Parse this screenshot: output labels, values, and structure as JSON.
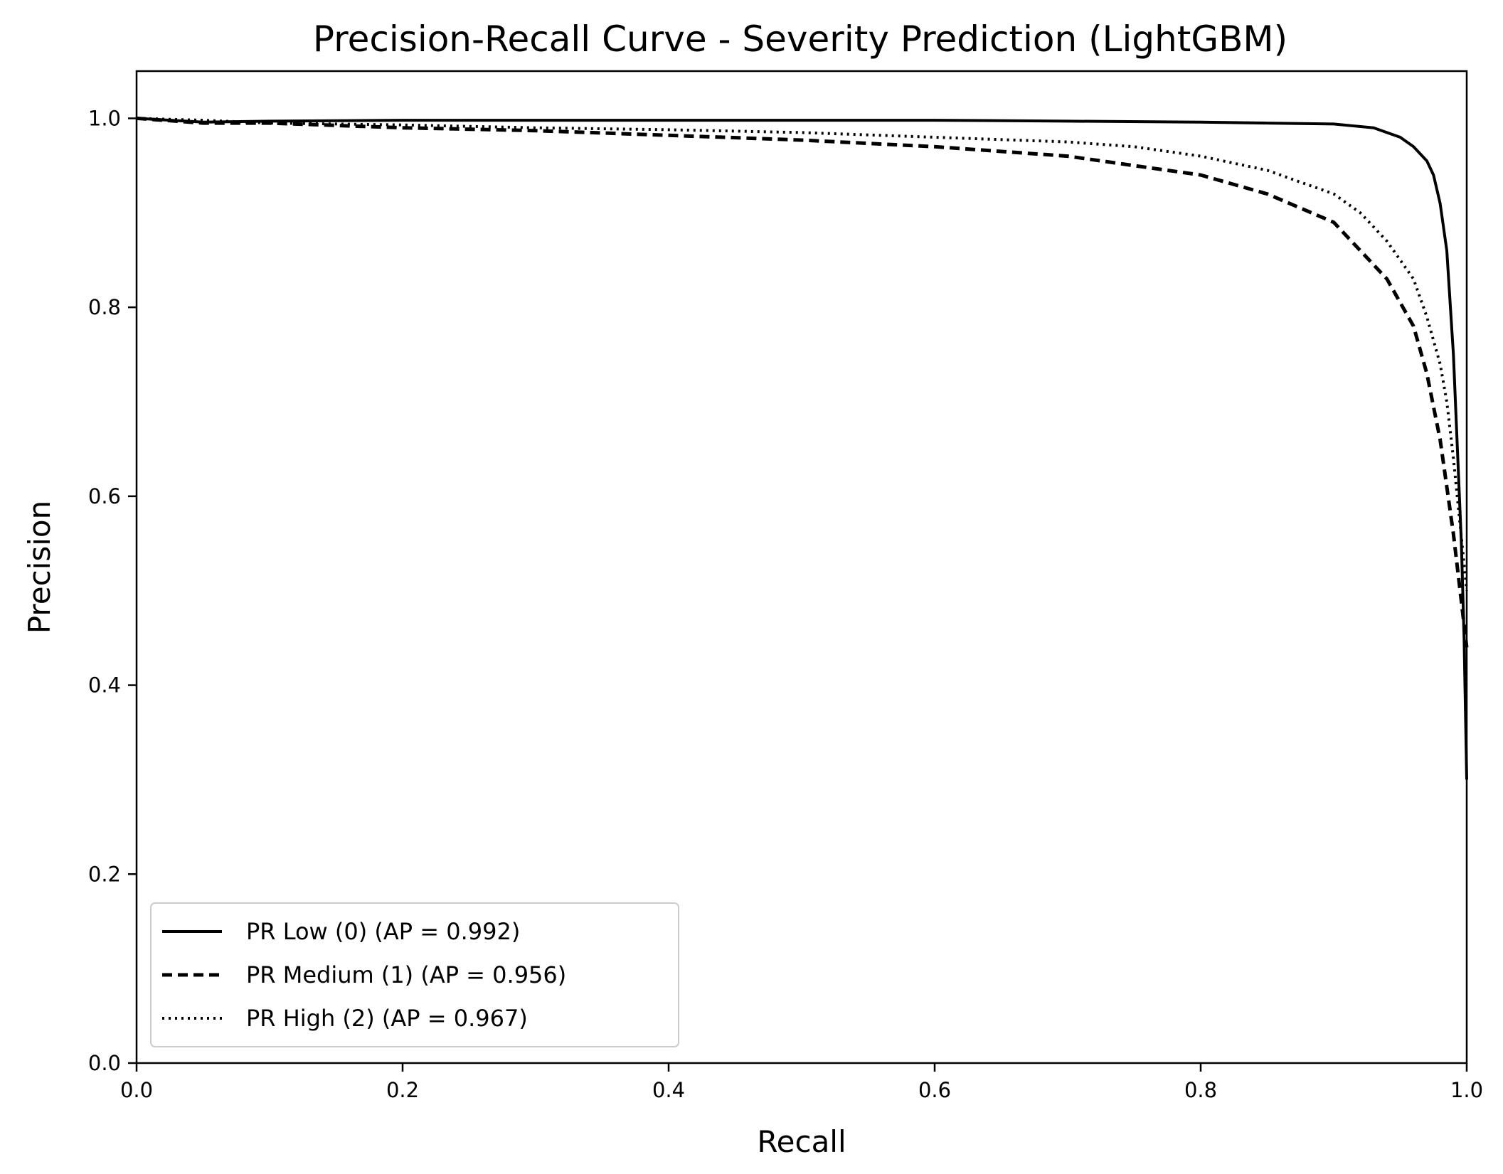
{
  "chart_data": {
    "type": "line",
    "title": "Precision-Recall Curve - Severity Prediction (LightGBM)",
    "xlabel": "Recall",
    "ylabel": "Precision",
    "xlim": [
      0.0,
      1.0
    ],
    "ylim": [
      0.0,
      1.05
    ],
    "xticks": [
      "0.0",
      "0.2",
      "0.4",
      "0.6",
      "0.8",
      "1.0"
    ],
    "yticks": [
      "0.0",
      "0.2",
      "0.4",
      "0.6",
      "0.8",
      "1.0"
    ],
    "grid": false,
    "legend_position": "lower-left",
    "series": [
      {
        "name": "PR Low (0) (AP = 0.992)",
        "style": "solid",
        "color": "#000000",
        "x": [
          0.0,
          0.05,
          0.1,
          0.2,
          0.3,
          0.4,
          0.5,
          0.6,
          0.7,
          0.8,
          0.85,
          0.9,
          0.93,
          0.95,
          0.96,
          0.97,
          0.975,
          0.98,
          0.985,
          0.99,
          0.993,
          0.996,
          0.998,
          1.0
        ],
        "y": [
          1.0,
          0.996,
          0.997,
          0.998,
          0.998,
          0.998,
          0.998,
          0.998,
          0.997,
          0.996,
          0.995,
          0.994,
          0.99,
          0.98,
          0.97,
          0.955,
          0.94,
          0.91,
          0.86,
          0.75,
          0.65,
          0.55,
          0.45,
          0.3
        ]
      },
      {
        "name": "PR Medium (1) (AP = 0.956)",
        "style": "dashed",
        "color": "#000000",
        "x": [
          0.0,
          0.05,
          0.1,
          0.2,
          0.3,
          0.4,
          0.5,
          0.6,
          0.7,
          0.75,
          0.8,
          0.85,
          0.9,
          0.92,
          0.94,
          0.96,
          0.97,
          0.98,
          0.985,
          0.99,
          0.995,
          1.0
        ],
        "y": [
          1.0,
          0.995,
          0.995,
          0.99,
          0.987,
          0.982,
          0.977,
          0.97,
          0.96,
          0.95,
          0.94,
          0.92,
          0.89,
          0.86,
          0.83,
          0.78,
          0.73,
          0.66,
          0.61,
          0.56,
          0.5,
          0.44
        ]
      },
      {
        "name": "PR High (2) (AP = 0.967)",
        "style": "dotted",
        "color": "#000000",
        "x": [
          0.0,
          0.05,
          0.1,
          0.2,
          0.3,
          0.4,
          0.5,
          0.6,
          0.7,
          0.75,
          0.8,
          0.85,
          0.9,
          0.92,
          0.94,
          0.96,
          0.97,
          0.98,
          0.985,
          0.99,
          0.995,
          1.0
        ],
        "y": [
          1.0,
          0.998,
          0.995,
          0.993,
          0.99,
          0.988,
          0.985,
          0.98,
          0.975,
          0.97,
          0.96,
          0.945,
          0.92,
          0.9,
          0.87,
          0.83,
          0.79,
          0.74,
          0.7,
          0.64,
          0.57,
          0.5
        ]
      }
    ]
  }
}
